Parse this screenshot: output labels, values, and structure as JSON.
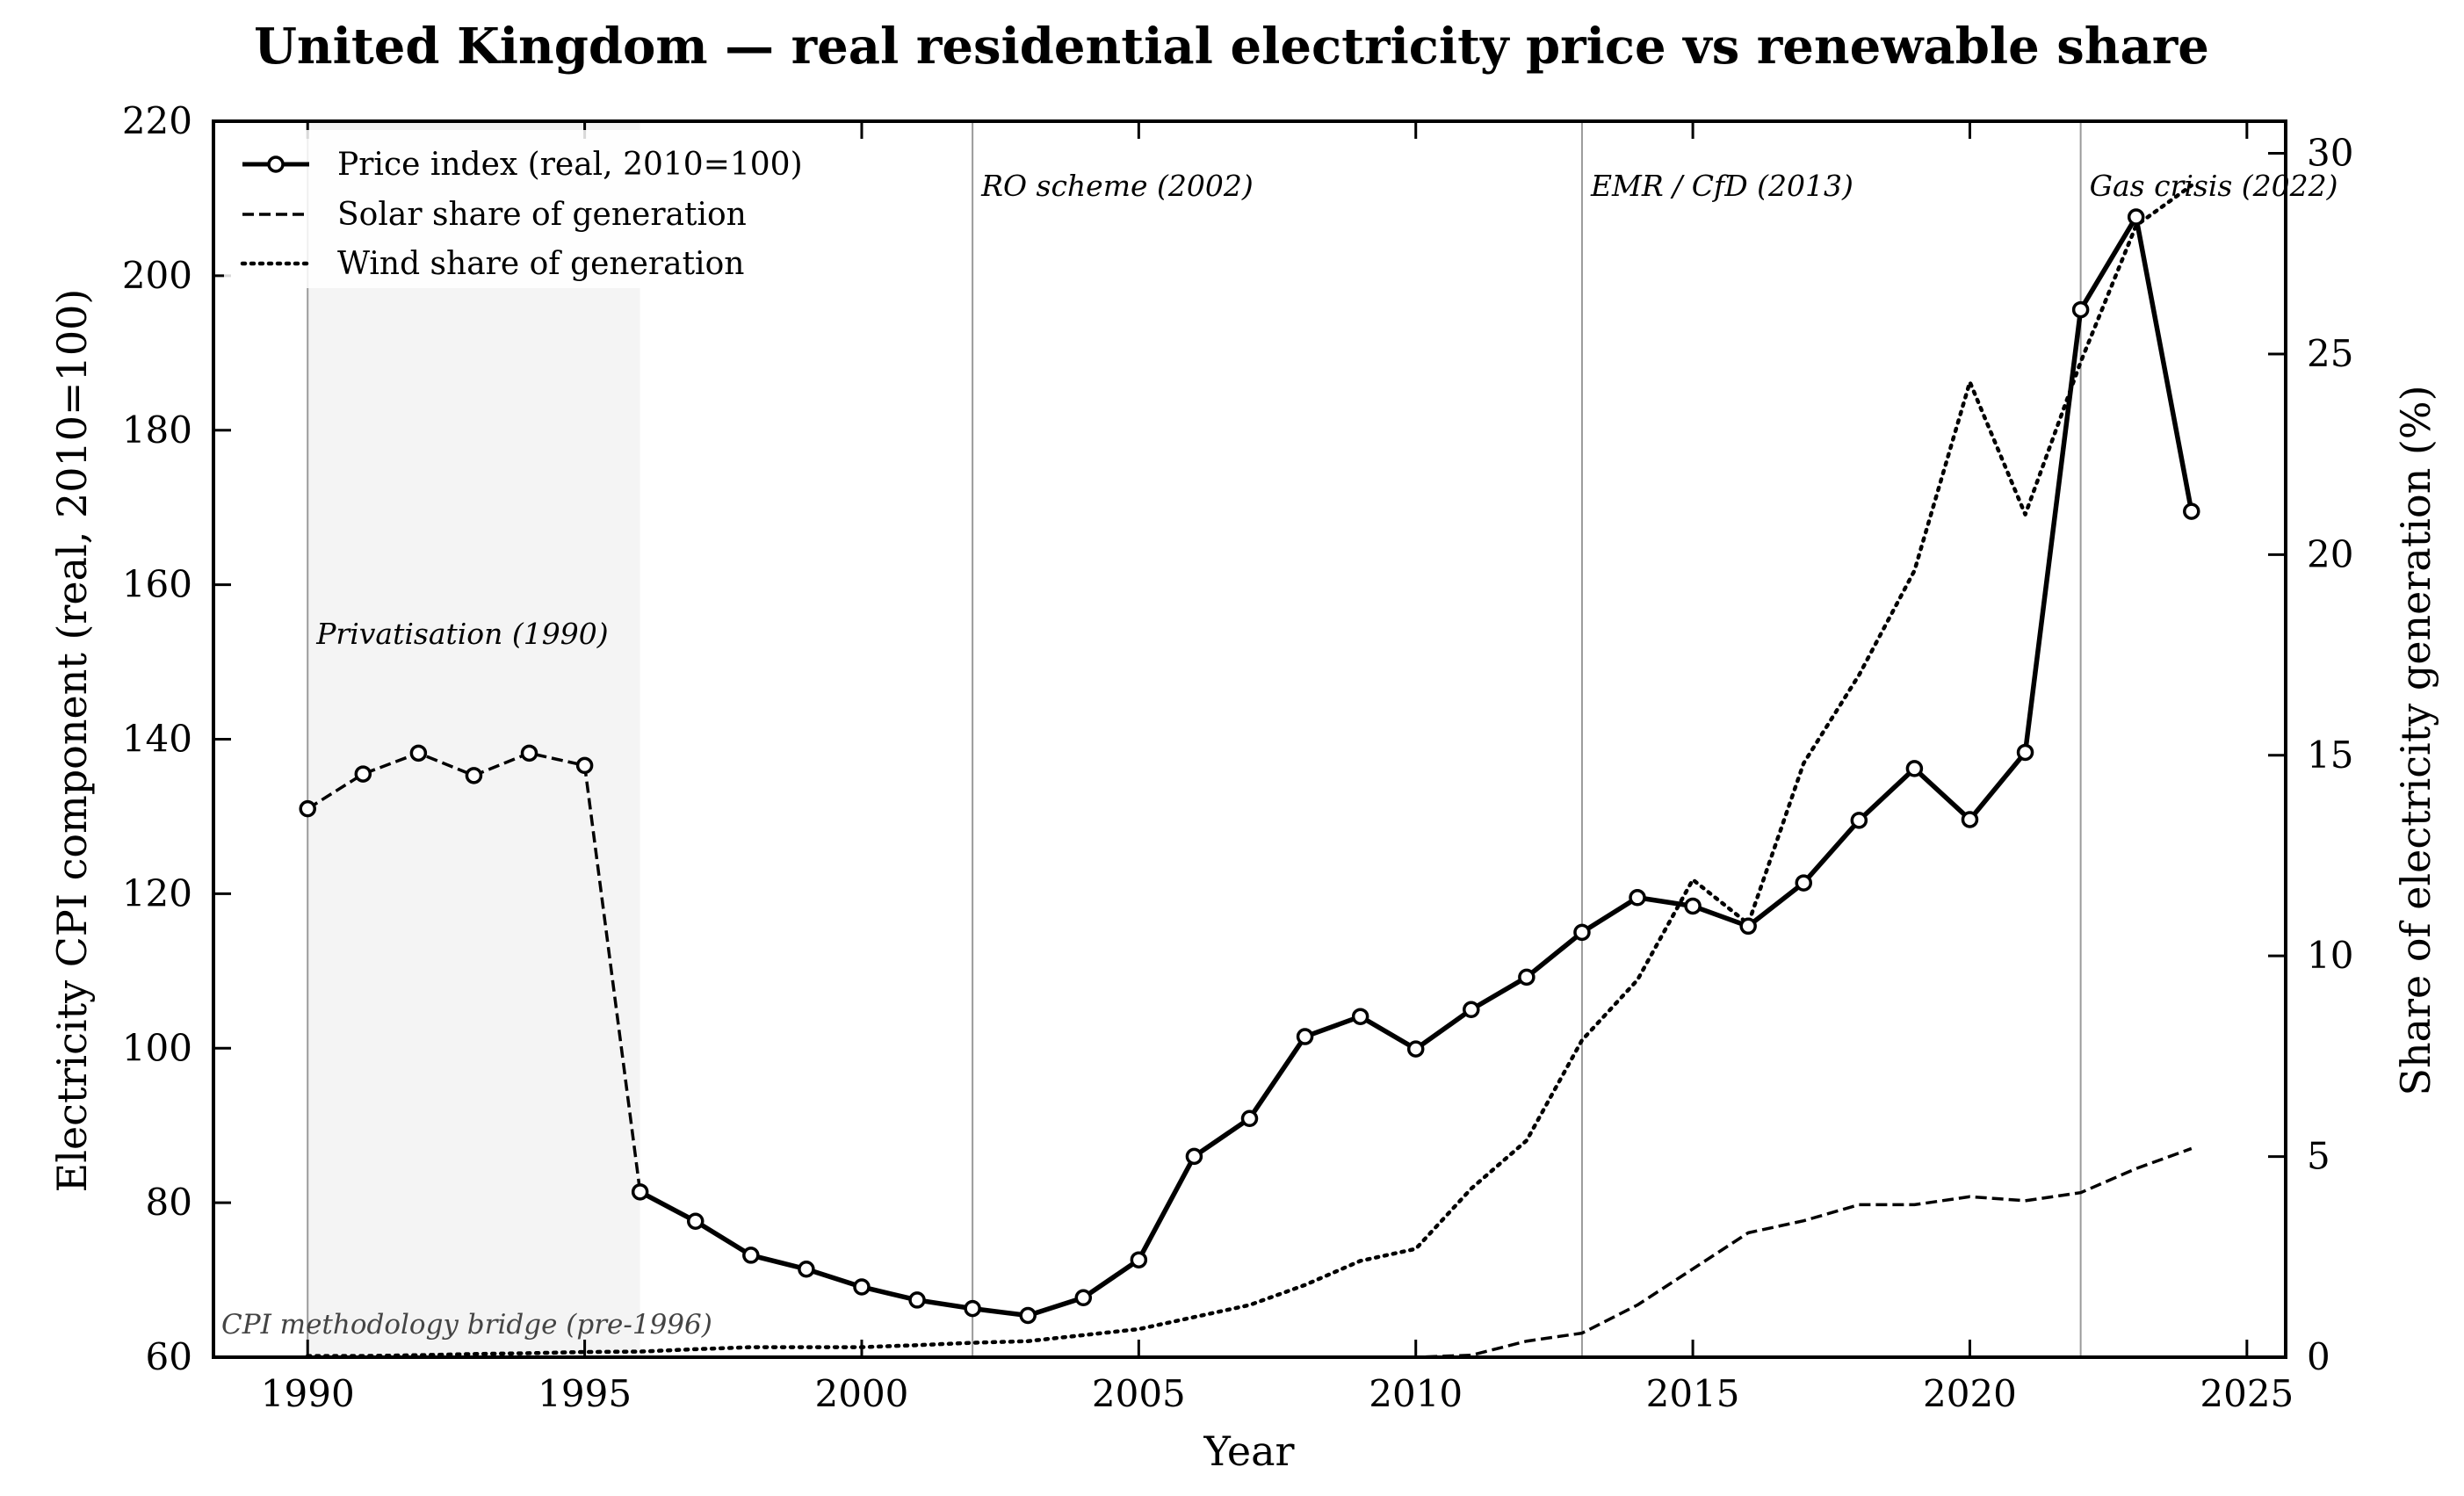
{
  "chart_data": {
    "type": "line",
    "title": "United Kingdom — real residential electricity price vs renewable share",
    "xlabel": "Year",
    "ylabel_left": "Electricity CPI component (real, 2010=100)",
    "ylabel_right": "Share of electricity generation (%)",
    "xlim": [
      1988.3,
      2025.7
    ],
    "ylim_left": [
      60,
      220
    ],
    "ylim_right": [
      0,
      30.8
    ],
    "x_ticks": [
      1990,
      1995,
      2000,
      2005,
      2010,
      2015,
      2020,
      2025
    ],
    "y_left_ticks": [
      60,
      80,
      100,
      120,
      140,
      160,
      180,
      200,
      220
    ],
    "y_right_ticks": [
      0,
      5,
      10,
      15,
      20,
      25,
      30
    ],
    "grid": false,
    "legend_position": "top-left",
    "series": [
      {
        "name": "Price index (real, 2010=100)",
        "axis": "left",
        "style": "solid-marker",
        "x": [
          1990,
          1991,
          1992,
          1993,
          1994,
          1995,
          1996,
          1997,
          1998,
          1999,
          2000,
          2001,
          2002,
          2003,
          2004,
          2005,
          2006,
          2007,
          2008,
          2009,
          2010,
          2011,
          2012,
          2013,
          2014,
          2015,
          2016,
          2017,
          2018,
          2019,
          2020,
          2021,
          2022,
          2023,
          2024
        ],
        "y": [
          131,
          135.5,
          138.2,
          135.3,
          138.2,
          136.6,
          81.4,
          77.6,
          73.2,
          71.4,
          69.1,
          67.4,
          66.3,
          65.4,
          67.7,
          72.6,
          86,
          90.9,
          101.5,
          104.1,
          99.9,
          105,
          109.2,
          115,
          119.5,
          118.4,
          115.8,
          121.4,
          129.5,
          136.2,
          129.6,
          138.3,
          195.6,
          207.6,
          169.5
        ],
        "bridge_until": 1996
      },
      {
        "name": "Solar share of generation",
        "axis": "right",
        "style": "dashed",
        "x": [
          1990,
          1995,
          2000,
          2005,
          2010,
          2011,
          2012,
          2013,
          2014,
          2015,
          2016,
          2017,
          2018,
          2019,
          2020,
          2021,
          2022,
          2023,
          2024
        ],
        "y": [
          0,
          0,
          0,
          0,
          0,
          0.05,
          0.4,
          0.6,
          1.3,
          2.2,
          3.1,
          3.4,
          3.8,
          3.8,
          4.0,
          3.9,
          4.1,
          4.7,
          5.2
        ]
      },
      {
        "name": "Wind share of generation",
        "axis": "right",
        "style": "dotted",
        "x": [
          1990,
          1991,
          1992,
          1993,
          1994,
          1995,
          1996,
          1997,
          1998,
          1999,
          2000,
          2001,
          2002,
          2003,
          2004,
          2005,
          2006,
          2007,
          2008,
          2009,
          2010,
          2011,
          2012,
          2013,
          2014,
          2015,
          2016,
          2017,
          2018,
          2019,
          2020,
          2021,
          2022,
          2023,
          2024
        ],
        "y": [
          0.03,
          0.03,
          0.05,
          0.08,
          0.1,
          0.13,
          0.14,
          0.2,
          0.25,
          0.25,
          0.25,
          0.3,
          0.36,
          0.4,
          0.55,
          0.7,
          1.0,
          1.3,
          1.8,
          2.4,
          2.7,
          4.2,
          5.4,
          7.9,
          9.4,
          11.9,
          10.8,
          14.8,
          17.0,
          19.6,
          24.3,
          21.0,
          24.8,
          28.2,
          29.2
        ]
      }
    ],
    "shaded_region": {
      "x": [
        1990,
        1996
      ],
      "label": "Privatisation (1990)"
    },
    "bridge_label": "CPI methodology bridge (pre-1996)",
    "events": [
      {
        "x": 1990,
        "label": ""
      },
      {
        "x": 2002,
        "label": "RO scheme (2002)"
      },
      {
        "x": 2013,
        "label": "EMR / CfD (2013)"
      },
      {
        "x": 2022,
        "label": "Gas crisis (2022)"
      }
    ]
  }
}
